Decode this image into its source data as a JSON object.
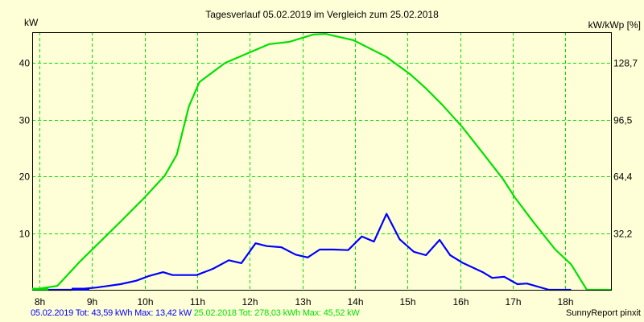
{
  "chart_data": {
    "type": "line",
    "title": "Tagesverlauf 05.02.2019 im Vergleich zum 25.02.2018",
    "ylabel": "kW",
    "y2label": "kW/kWp [%]",
    "xlabel": "",
    "xlim": [
      7.86,
      18.87
    ],
    "ylim": [
      0,
      45.4
    ],
    "x_ticks": [
      8,
      9,
      10,
      11,
      12,
      13,
      14,
      15,
      16,
      17,
      18
    ],
    "x_tick_labels": [
      "8h",
      "9h",
      "10h",
      "11h",
      "12h",
      "13h",
      "14h",
      "15h",
      "16h",
      "17h",
      "18h"
    ],
    "y_ticks": [
      10,
      20,
      30,
      40
    ],
    "y_tick_labels": [
      "10",
      "20",
      "30",
      "40"
    ],
    "y2_tick_labels": [
      "32,2",
      "64,4",
      "96,5",
      "128,7"
    ],
    "grid": true,
    "series": [
      {
        "name": "05.02.2019",
        "color": "#0000ff",
        "x": [
          7.86,
          8.62,
          9.08,
          9.54,
          9.84,
          10.07,
          10.35,
          10.53,
          10.99,
          11.3,
          11.6,
          11.84,
          12.11,
          12.32,
          12.6,
          12.87,
          13.1,
          13.33,
          13.6,
          13.87,
          14.13,
          14.36,
          14.6,
          14.85,
          15.12,
          15.35,
          15.61,
          15.81,
          16.04,
          16.43,
          16.61,
          16.84,
          17.09,
          17.27,
          17.69,
          18.11
        ],
        "y": [
          0,
          0,
          0.4,
          1,
          1.6,
          2.4,
          3.1,
          2.6,
          2.6,
          3.7,
          5.2,
          4.7,
          8.2,
          7.7,
          7.5,
          6.2,
          5.7,
          7.1,
          7.1,
          7.0,
          9.4,
          8.5,
          13.4,
          8.9,
          6.7,
          6.1,
          8.8,
          6.1,
          4.8,
          3.1,
          2.1,
          2.3,
          1.0,
          1.1,
          0,
          0
        ]
      },
      {
        "name": "25.02.2018",
        "color": "#00e000",
        "x": [
          7.86,
          8.34,
          8.77,
          9.54,
          10.0,
          10.38,
          10.61,
          10.84,
          11.04,
          11.53,
          12.37,
          12.75,
          13.21,
          13.44,
          13.97,
          14.59,
          15.05,
          15.35,
          15.66,
          16.04,
          16.43,
          16.81,
          17.04,
          17.38,
          17.81,
          18.11,
          18.41,
          18.87
        ],
        "y": [
          0,
          0.7,
          5,
          12,
          16.3,
          20.1,
          23.8,
          32.3,
          36.6,
          40,
          43.3,
          43.7,
          45,
          45.1,
          44,
          41.1,
          38,
          35.5,
          32.6,
          28.7,
          24.1,
          19.6,
          16.3,
          12.1,
          7.1,
          4.5,
          0,
          0
        ]
      }
    ]
  },
  "legend": {
    "series1": "05.02.2019 Tot: 43,59 kWh Max: 13,42 kW",
    "series2": "25.02.2018 Tot: 278,03 kWh Max: 45,52 kW"
  },
  "footer": {
    "credit": "SunnyReport pinxit"
  },
  "colors": {
    "background": "#ffffd7",
    "grid": "#00e000",
    "series1": "#0000ff",
    "series2": "#00e000"
  }
}
